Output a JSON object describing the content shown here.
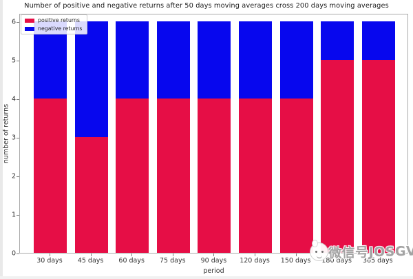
{
  "chart_data": {
    "type": "bar",
    "stacked": true,
    "title": "Number of positive and negative returns after 50 days moving averages cross 200 days moving averages",
    "xlabel": "period",
    "ylabel": "number of returns",
    "categories": [
      "30 days",
      "45 days",
      "60 days",
      "75 days",
      "90 days",
      "120 days",
      "150 days",
      "180 days",
      "365 days"
    ],
    "series": [
      {
        "name": "positive returns",
        "color": "#e60e46",
        "values": [
          4,
          3,
          4,
          4,
          4,
          4,
          4,
          5,
          5
        ]
      },
      {
        "name": "negative returns",
        "color": "#0707ee",
        "values": [
          2,
          3,
          2,
          2,
          2,
          2,
          2,
          1,
          1
        ]
      }
    ],
    "yticks": [
      0,
      1,
      2,
      3,
      4,
      5,
      6
    ],
    "ylim": [
      0,
      6.2
    ],
    "grid": false,
    "legend_position": "upper left"
  },
  "watermark": {
    "icon": "smiley-face-sticker-icon",
    "text": "微信号JOSGVC"
  }
}
